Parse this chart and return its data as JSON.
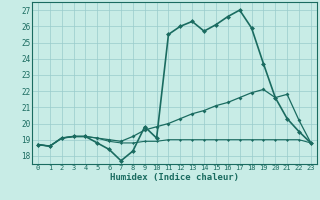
{
  "xlabel": "Humidex (Indice chaleur)",
  "xlim": [
    -0.5,
    23.5
  ],
  "ylim": [
    17.5,
    27.5
  ],
  "yticks": [
    18,
    19,
    20,
    21,
    22,
    23,
    24,
    25,
    26,
    27
  ],
  "xticks": [
    0,
    1,
    2,
    3,
    4,
    5,
    6,
    7,
    8,
    9,
    10,
    11,
    12,
    13,
    14,
    15,
    16,
    17,
    18,
    19,
    20,
    21,
    22,
    23
  ],
  "bg_color": "#c8ece6",
  "line_color": "#1a6b60",
  "grid_color": "#99cccc",
  "lines": [
    {
      "x": [
        0,
        1,
        2,
        3,
        4,
        5,
        6,
        7,
        8,
        9,
        10,
        11,
        12,
        13,
        14,
        15,
        16,
        17,
        18,
        19,
        20,
        21,
        22,
        23
      ],
      "y": [
        18.7,
        18.6,
        19.1,
        19.2,
        19.2,
        18.8,
        18.4,
        17.7,
        18.3,
        19.8,
        19.1,
        25.5,
        26.0,
        26.3,
        25.7,
        26.1,
        26.6,
        27.0,
        25.9,
        23.7,
        21.6,
        20.3,
        19.5,
        18.8
      ],
      "lw": 1.2,
      "ms": 2.5
    },
    {
      "x": [
        0,
        1,
        2,
        3,
        4,
        5,
        6,
        7,
        8,
        9,
        10,
        11,
        12,
        13,
        14,
        15,
        16,
        17,
        18,
        19,
        20,
        21,
        22,
        23
      ],
      "y": [
        18.7,
        18.6,
        19.1,
        19.2,
        19.2,
        19.1,
        19.0,
        18.9,
        19.2,
        19.6,
        19.8,
        20.0,
        20.3,
        20.6,
        20.8,
        21.1,
        21.3,
        21.6,
        21.9,
        22.1,
        21.6,
        21.8,
        20.2,
        18.8
      ],
      "lw": 0.9,
      "ms": 2.0
    },
    {
      "x": [
        0,
        1,
        2,
        3,
        4,
        5,
        6,
        7,
        8,
        9,
        10,
        11,
        12,
        13,
        14,
        15,
        16,
        17,
        18,
        19,
        20,
        21,
        22,
        23
      ],
      "y": [
        18.7,
        18.6,
        19.1,
        19.2,
        19.2,
        19.1,
        18.9,
        18.8,
        18.8,
        18.9,
        18.9,
        19.0,
        19.0,
        19.0,
        19.0,
        19.0,
        19.0,
        19.0,
        19.0,
        19.0,
        19.0,
        19.0,
        19.0,
        18.8
      ],
      "lw": 0.8,
      "ms": 1.5
    }
  ]
}
